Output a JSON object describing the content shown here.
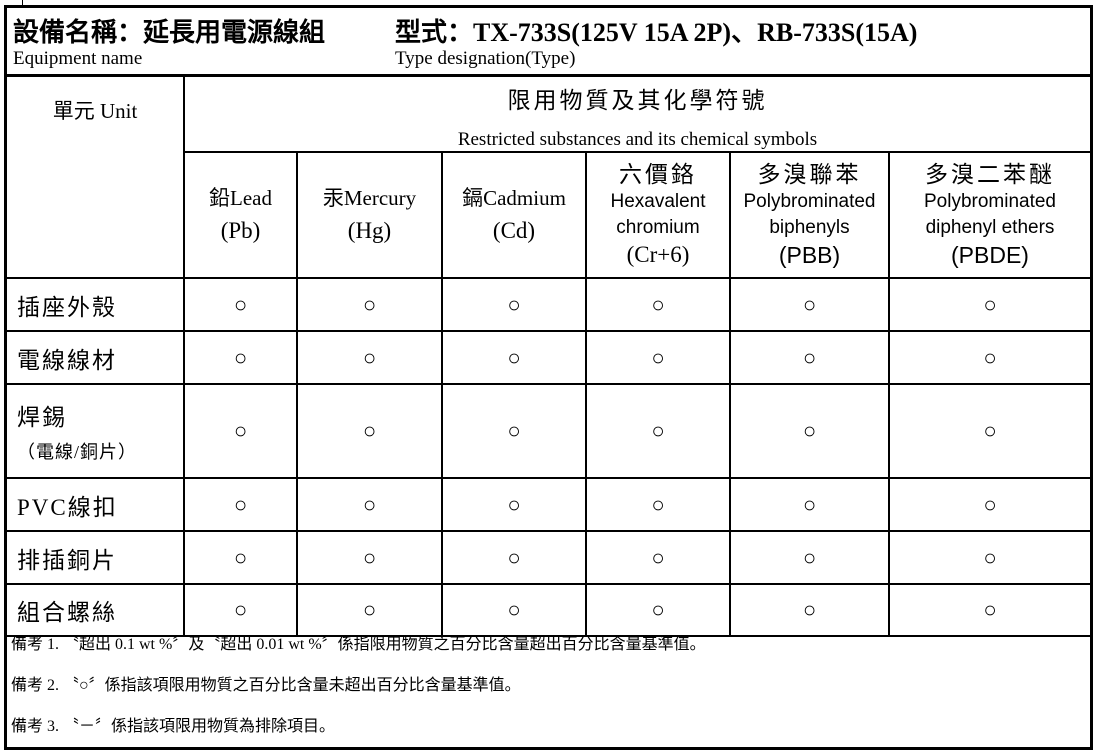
{
  "header": {
    "equipment_name_zh": "設備名稱：延長用電源線組",
    "equipment_name_en": "Equipment name",
    "type_zh": "型式：TX-733S(125V 15A 2P)、RB-733S(15A)",
    "type_en": "Type designation(Type)"
  },
  "table": {
    "unit_label": "單元 Unit",
    "restricted_zh": "限用物質及其化學符號",
    "restricted_en": "Restricted substances and its chemical symbols",
    "columns": [
      {
        "zh": "鉛",
        "en": "Lead",
        "sym": "(Pb)"
      },
      {
        "zh": "汞",
        "en": "Mercury",
        "sym": "(Hg)"
      },
      {
        "zh": "鎘",
        "en": "Cadmium",
        "sym": "(Cd)"
      },
      {
        "zh": "六價鉻",
        "en": "Hexavalent chromium",
        "sym": "(Cr+6)"
      },
      {
        "zh": "多溴聯苯",
        "en": "Polybrominated biphenyls",
        "sym": "(PBB)"
      },
      {
        "zh": "多溴二苯醚",
        "en": "Polybrominated diphenyl ethers",
        "sym": "(PBDE)"
      }
    ],
    "rows": [
      {
        "unit": "插座外殼",
        "values": [
          "○",
          "○",
          "○",
          "○",
          "○",
          "○"
        ]
      },
      {
        "unit": "電線線材",
        "values": [
          "○",
          "○",
          "○",
          "○",
          "○",
          "○"
        ]
      },
      {
        "unit": "焊錫",
        "unit_sub": "（電線/銅片）",
        "values": [
          "○",
          "○",
          "○",
          "○",
          "○",
          "○"
        ]
      },
      {
        "unit": "PVC線扣",
        "values": [
          "○",
          "○",
          "○",
          "○",
          "○",
          "○"
        ]
      },
      {
        "unit": "排插銅片",
        "values": [
          "○",
          "○",
          "○",
          "○",
          "○",
          "○"
        ]
      },
      {
        "unit": "組合螺絲",
        "values": [
          "○",
          "○",
          "○",
          "○",
          "○",
          "○"
        ]
      }
    ]
  },
  "notes": [
    "備考 1. 〝超出 0.1 wt %〞及〝超出 0.01 wt %〞係指限用物質之百分比含量超出百分比含量基準值。",
    "備考 2. 〝○〞係指該項限用物質之百分比含量未超出百分比含量基準值。",
    "備考 3. 〝－〞係指該項限用物質為排除項目。"
  ]
}
